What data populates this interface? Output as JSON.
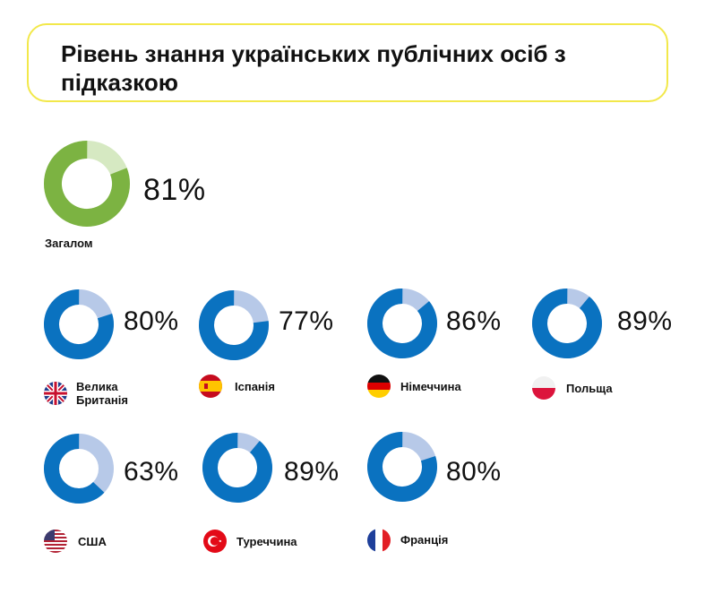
{
  "title": "Рівень знання українських публічних осіб з підказкою",
  "colors": {
    "overall_main": "#7cb342",
    "overall_rest": "#d6e9c2",
    "country_main": "#0a72c0",
    "country_rest": "#b7c9e8"
  },
  "chart_data": {
    "type": "pie",
    "title": "Рівень знання українських публічних осіб з підказкою",
    "unit": "%",
    "overall": {
      "label": "Загалом",
      "value": 81,
      "display": "81%"
    },
    "categories": [
      "Велика Британія",
      "Іспанія",
      "Німеччина",
      "Польща",
      "США",
      "Туреччина",
      "Франція"
    ],
    "values": [
      80,
      77,
      86,
      89,
      63,
      89,
      80
    ],
    "displays": [
      "80%",
      "77%",
      "86%",
      "89%",
      "63%",
      "89%",
      "80%"
    ]
  },
  "flags": [
    "uk-flag-icon",
    "spain-flag-icon",
    "germany-flag-icon",
    "poland-flag-icon",
    "usa-flag-icon",
    "turkey-flag-icon",
    "france-flag-icon"
  ]
}
